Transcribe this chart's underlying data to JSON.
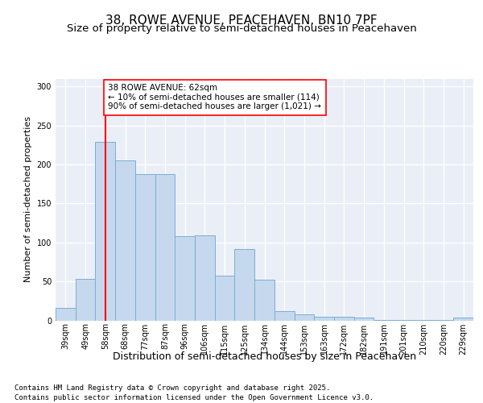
{
  "title": "38, ROWE AVENUE, PEACEHAVEN, BN10 7PF",
  "subtitle": "Size of property relative to semi-detached houses in Peacehaven",
  "xlabel": "Distribution of semi-detached houses by size in Peacehaven",
  "ylabel": "Number of semi-detached properties",
  "categories": [
    "39sqm",
    "49sqm",
    "58sqm",
    "68sqm",
    "77sqm",
    "87sqm",
    "96sqm",
    "106sqm",
    "115sqm",
    "125sqm",
    "134sqm",
    "144sqm",
    "153sqm",
    "163sqm",
    "172sqm",
    "182sqm",
    "191sqm",
    "201sqm",
    "210sqm",
    "220sqm",
    "229sqm"
  ],
  "values": [
    16,
    53,
    229,
    205,
    188,
    188,
    108,
    109,
    57,
    91,
    52,
    12,
    8,
    5,
    5,
    4,
    1,
    1,
    1,
    1,
    4
  ],
  "bar_color": "#c5d8ed",
  "bar_edge_color": "#7aafd4",
  "vline_color": "red",
  "vline_index": 2,
  "annotation_text": "38 ROWE AVENUE: 62sqm\n← 10% of semi-detached houses are smaller (114)\n90% of semi-detached houses are larger (1,021) →",
  "annotation_box_color": "white",
  "annotation_box_edge": "red",
  "ylim": [
    0,
    310
  ],
  "yticks": [
    0,
    50,
    100,
    150,
    200,
    250,
    300
  ],
  "background_color": "#eaeff7",
  "footer_text": "Contains HM Land Registry data © Crown copyright and database right 2025.\nContains public sector information licensed under the Open Government Licence v3.0.",
  "title_fontsize": 11,
  "subtitle_fontsize": 9.5,
  "xlabel_fontsize": 9,
  "ylabel_fontsize": 8,
  "footer_fontsize": 6.5,
  "annotation_fontsize": 7.5,
  "tick_fontsize": 7
}
